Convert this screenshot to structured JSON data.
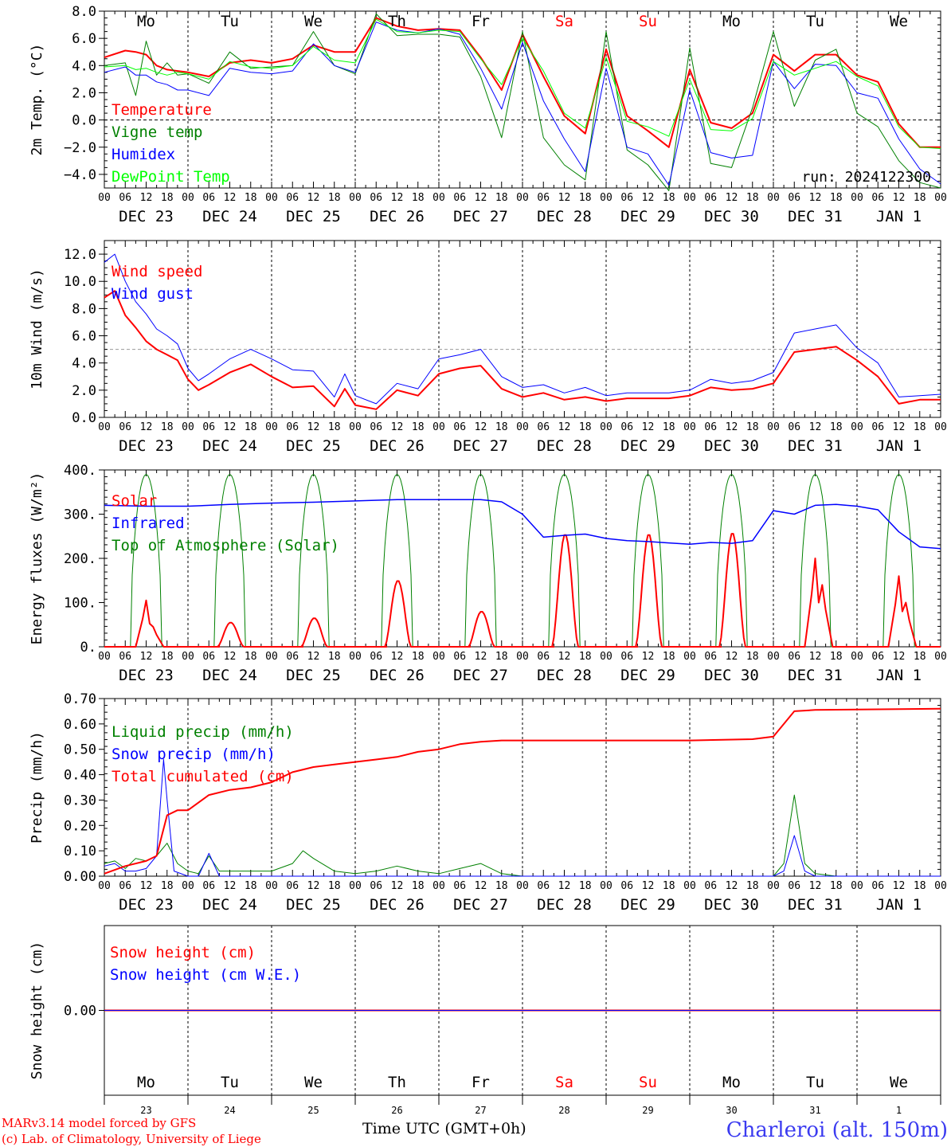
{
  "footer": {
    "model": "MARv3.14 model forced by GFS",
    "lab": "(c) Lab. of Climatology, University of Liege",
    "xaxis_label": "Time UTC (GMT+0h)",
    "station": "Charleroi (alt. 150m)"
  },
  "days": {
    "day_names": [
      "Mo",
      "Tu",
      "We",
      "Th",
      "Fr",
      "Sa",
      "Su",
      "Mo",
      "Tu",
      "We"
    ],
    "dates": [
      "DEC 23",
      "DEC 24",
      "DEC 25",
      "DEC 26",
      "DEC 27",
      "DEC 28",
      "DEC 29",
      "DEC 30",
      "DEC 31",
      "JAN  1"
    ],
    "day_numbers": [
      "23",
      "24",
      "25",
      "26",
      "27",
      "28",
      "29",
      "30",
      "31",
      "1"
    ],
    "hour_ticks": [
      "00",
      "06",
      "12",
      "18"
    ],
    "final_tick": "00",
    "weekend_color": "#ff0000",
    "weekday_color": "#000000"
  },
  "colors": {
    "red": "#ff0000",
    "green": "#008000",
    "blue": "#0000ff",
    "lightgreen": "#00ff00"
  },
  "chart_data": [
    {
      "type": "line",
      "ylabel": "2m Temp. (°C)",
      "ylim": [
        -5,
        8
      ],
      "yticks": [
        "8.0",
        "6.0",
        "4.0",
        "2.0",
        "0.0",
        "−2.0",
        "−4.0"
      ],
      "yticks_values": [
        8,
        6,
        4,
        2,
        0,
        -2,
        -4
      ],
      "reference_line": 0,
      "annotation": "run: 2024122300",
      "x_hours": [
        0,
        6,
        9,
        12,
        15,
        18,
        21,
        24,
        30,
        36,
        42,
        48,
        54,
        60,
        66,
        72,
        78,
        84,
        90,
        96,
        102,
        108,
        114,
        120,
        126,
        132,
        138,
        144,
        150,
        156,
        162,
        168,
        174,
        180,
        186,
        192,
        198,
        204,
        210,
        216,
        222,
        228,
        234,
        240
      ],
      "series": [
        {
          "name": "Temperature",
          "color": "#ff0000",
          "values": [
            4.6,
            5.1,
            5.0,
            4.8,
            4.0,
            3.7,
            3.6,
            3.5,
            3.2,
            4.2,
            4.4,
            4.2,
            4.5,
            5.5,
            5.0,
            5.0,
            7.5,
            6.9,
            6.6,
            6.7,
            6.6,
            4.6,
            2.2,
            6.3,
            3.2,
            0.3,
            -1.0,
            5.2,
            0.3,
            -0.8,
            -2.0,
            3.7,
            -0.2,
            -0.6,
            0.5,
            4.8,
            3.6,
            4.8,
            4.8,
            3.3,
            2.8,
            -0.3,
            -2.0,
            -2.0
          ]
        },
        {
          "name": "Vigne temp",
          "color": "#008000",
          "values": [
            4.0,
            4.2,
            1.8,
            5.8,
            3.3,
            4.2,
            3.3,
            3.4,
            2.7,
            5.0,
            3.8,
            3.9,
            4.0,
            6.5,
            4.0,
            3.4,
            7.8,
            6.2,
            6.3,
            6.3,
            6.1,
            3.2,
            -1.3,
            6.5,
            -1.3,
            -3.3,
            -4.4,
            6.5,
            -2.2,
            -3.3,
            -5.2,
            5.3,
            -3.2,
            -3.5,
            0.9,
            6.5,
            1.0,
            4.4,
            5.2,
            0.5,
            -0.5,
            -3.0,
            -4.6,
            -5.0
          ]
        },
        {
          "name": "Humidex",
          "color": "#0000ff",
          "values": [
            3.5,
            3.9,
            3.3,
            3.3,
            2.8,
            2.6,
            2.2,
            2.2,
            1.8,
            3.8,
            3.5,
            3.4,
            3.6,
            5.6,
            4.0,
            3.5,
            7.2,
            6.6,
            6.4,
            6.7,
            6.3,
            3.8,
            0.8,
            5.7,
            1.4,
            -1.4,
            -3.8,
            3.8,
            -2.0,
            -2.5,
            -4.8,
            2.2,
            -2.4,
            -2.8,
            -2.6,
            4.3,
            2.3,
            4.1,
            4.0,
            2.0,
            1.6,
            -1.4,
            -3.6,
            -4.7
          ]
        },
        {
          "name": "DewPoint Temp",
          "color": "#00ff00",
          "values": [
            3.9,
            4.0,
            3.7,
            3.8,
            3.5,
            3.3,
            3.5,
            3.4,
            3.0,
            4.3,
            3.9,
            3.8,
            4.0,
            5.4,
            4.4,
            4.2,
            7.4,
            6.5,
            6.4,
            6.6,
            6.5,
            4.5,
            2.6,
            6.0,
            3.6,
            0.5,
            -0.6,
            4.6,
            -0.1,
            -0.5,
            -1.2,
            3.0,
            -0.7,
            -0.8,
            0.1,
            4.3,
            3.3,
            3.8,
            4.3,
            3.2,
            2.5,
            -0.5,
            -2.0,
            -2.1
          ]
        }
      ],
      "legend_entries": [
        "Temperature",
        "Vigne temp",
        "Humidex",
        "DewPoint Temp"
      ],
      "legend_placement": "top-left",
      "grid": false
    },
    {
      "type": "line",
      "ylabel": "10m Wind (m/s)",
      "ylim": [
        0,
        13
      ],
      "yticks": [
        "12.0",
        "10.0",
        "8.0",
        "6.0",
        "4.0",
        "2.0",
        "0.0"
      ],
      "yticks_values": [
        12,
        10,
        8,
        6,
        4,
        2,
        0
      ],
      "reference_line": 5,
      "x_hours": [
        0,
        3,
        6,
        9,
        12,
        15,
        18,
        21,
        24,
        27,
        30,
        36,
        42,
        48,
        54,
        60,
        66,
        69,
        72,
        78,
        84,
        90,
        96,
        102,
        108,
        114,
        120,
        126,
        132,
        138,
        144,
        150,
        156,
        162,
        168,
        174,
        180,
        186,
        192,
        198,
        204,
        210,
        216,
        222,
        228,
        234,
        240
      ],
      "series": [
        {
          "name": "Wind speed",
          "color": "#ff0000",
          "values": [
            8.8,
            9.3,
            7.5,
            6.6,
            5.6,
            5.0,
            4.6,
            4.2,
            2.8,
            2.0,
            2.4,
            3.3,
            3.9,
            3.0,
            2.2,
            2.3,
            0.8,
            2.1,
            0.9,
            0.6,
            2.0,
            1.6,
            3.2,
            3.6,
            3.8,
            2.1,
            1.5,
            1.8,
            1.3,
            1.5,
            1.2,
            1.4,
            1.4,
            1.4,
            1.6,
            2.2,
            2.0,
            2.1,
            2.5,
            4.8,
            5.0,
            5.2,
            4.2,
            3.0,
            1.0,
            1.3,
            1.3
          ]
        },
        {
          "name": "Wind gust",
          "color": "#0000ff",
          "values": [
            11.4,
            12.0,
            10.0,
            8.5,
            7.6,
            6.5,
            6.0,
            5.4,
            3.6,
            2.7,
            3.2,
            4.3,
            5.0,
            4.3,
            3.5,
            3.4,
            1.5,
            3.2,
            1.6,
            1.0,
            2.5,
            2.1,
            4.3,
            4.6,
            5.0,
            3.0,
            2.2,
            2.4,
            1.8,
            2.2,
            1.6,
            1.8,
            1.8,
            1.8,
            2.0,
            2.8,
            2.5,
            2.7,
            3.3,
            6.2,
            6.5,
            6.8,
            5.1,
            4.0,
            1.5,
            1.6,
            1.7
          ]
        }
      ],
      "legend_entries": [
        "Wind speed",
        "Wind gust"
      ],
      "legend_placement": "top-left",
      "grid": false
    },
    {
      "type": "line",
      "ylabel": "Energy fluxes (W/m²)",
      "ylim": [
        0,
        400
      ],
      "yticks": [
        "400.",
        "300.",
        "200.",
        "100.",
        "0."
      ],
      "yticks_values": [
        400,
        300,
        200,
        100,
        0
      ],
      "toa_peak": 390,
      "solar_peaks": [
        {
          "day": 0,
          "peak": 105,
          "secondary": 45
        },
        {
          "day": 1,
          "peak": 55
        },
        {
          "day": 2,
          "peak": 65
        },
        {
          "day": 3,
          "peak": 150
        },
        {
          "day": 4,
          "peak": 80
        },
        {
          "day": 5,
          "peak": 255
        },
        {
          "day": 6,
          "peak": 255
        },
        {
          "day": 7,
          "peak": 258
        },
        {
          "day": 8,
          "peak": 200,
          "secondary": 140
        },
        {
          "day": 9,
          "peak": 160,
          "secondary": 100
        }
      ],
      "infrared": {
        "x_hours": [
          0,
          12,
          24,
          36,
          48,
          60,
          72,
          84,
          96,
          108,
          114,
          120,
          126,
          132,
          138,
          144,
          150,
          156,
          162,
          168,
          174,
          180,
          186,
          192,
          198,
          204,
          210,
          216,
          222,
          228,
          234,
          240
        ],
        "values": [
          320,
          318,
          318,
          322,
          325,
          327,
          330,
          333,
          333,
          333,
          328,
          300,
          248,
          252,
          255,
          245,
          240,
          238,
          235,
          232,
          236,
          234,
          240,
          308,
          300,
          320,
          322,
          318,
          310,
          260,
          226,
          222
        ]
      },
      "series_names": [
        "Solar",
        "Infrared",
        "Top of Atmosphere (Solar)"
      ],
      "series_colors": [
        "#ff0000",
        "#0000ff",
        "#008000"
      ],
      "legend_placement": "top-left",
      "grid": false
    },
    {
      "type": "line",
      "ylabel": "Precip (mm/h)",
      "ylim": [
        0,
        0.7
      ],
      "yticks": [
        "0.70",
        "0.60",
        "0.50",
        "0.40",
        "0.30",
        "0.20",
        "0.10",
        "0.00"
      ],
      "yticks_values": [
        0.7,
        0.6,
        0.5,
        0.4,
        0.3,
        0.2,
        0.1,
        0
      ],
      "series": [
        {
          "name": "Liquid precip (mm/h)",
          "color": "#008000",
          "x_hours": [
            0,
            3,
            6,
            9,
            12,
            15,
            18,
            21,
            24,
            27,
            30,
            33,
            36,
            42,
            48,
            54,
            57,
            60,
            66,
            72,
            78,
            84,
            90,
            96,
            102,
            108,
            114,
            120,
            192,
            195,
            198,
            201,
            204,
            210,
            240
          ],
          "values": [
            0.05,
            0.06,
            0.03,
            0.07,
            0.06,
            0.08,
            0.13,
            0.05,
            0.02,
            0.01,
            0.08,
            0.02,
            0.02,
            0.02,
            0.02,
            0.05,
            0.1,
            0.07,
            0.02,
            0.01,
            0.02,
            0.04,
            0.02,
            0.01,
            0.03,
            0.05,
            0.01,
            0.0,
            0.0,
            0.05,
            0.32,
            0.05,
            0.01,
            0.0,
            0.0
          ]
        },
        {
          "name": "Snow precip (mm/h)",
          "color": "#0000ff",
          "x_hours": [
            0,
            3,
            6,
            9,
            12,
            15,
            17,
            18,
            20,
            24,
            27,
            30,
            33,
            36,
            42,
            48,
            192,
            195,
            198,
            201,
            204,
            210,
            240
          ],
          "values": [
            0.04,
            0.05,
            0.02,
            0.02,
            0.03,
            0.08,
            0.46,
            0.3,
            0.02,
            0.0,
            0.0,
            0.09,
            0.0,
            0.0,
            0.0,
            0.0,
            0.0,
            0.02,
            0.16,
            0.02,
            0.0,
            0.0,
            0.0
          ]
        },
        {
          "name": "Total cumulated (cm)",
          "color": "#ff0000",
          "x_hours": [
            0,
            6,
            12,
            15,
            18,
            21,
            24,
            30,
            36,
            42,
            48,
            54,
            60,
            66,
            72,
            78,
            84,
            90,
            96,
            102,
            108,
            114,
            120,
            132,
            144,
            168,
            186,
            192,
            195,
            198,
            204,
            240
          ],
          "values": [
            0.01,
            0.04,
            0.06,
            0.08,
            0.24,
            0.26,
            0.26,
            0.32,
            0.34,
            0.35,
            0.37,
            0.41,
            0.43,
            0.44,
            0.45,
            0.46,
            0.47,
            0.49,
            0.5,
            0.52,
            0.53,
            0.535,
            0.535,
            0.535,
            0.535,
            0.535,
            0.54,
            0.55,
            0.6,
            0.65,
            0.655,
            0.66
          ]
        }
      ],
      "legend_entries": [
        "Liquid precip (mm/h)",
        "Snow precip (mm/h)",
        "Total cumulated (cm)"
      ],
      "legend_placement": "top-left",
      "grid": false
    },
    {
      "type": "line",
      "ylabel": "Snow height (cm)",
      "yticks": [
        "0.00"
      ],
      "yticks_values": [
        0
      ],
      "ylim": [
        -1,
        1
      ],
      "series": [
        {
          "name": "Snow height (cm)",
          "color": "#ff0000",
          "x_hours": [
            0,
            240
          ],
          "values": [
            0,
            0
          ]
        },
        {
          "name": "Snow height (cm W.E.)",
          "color": "#0000ff",
          "x_hours": [
            0,
            240
          ],
          "values": [
            0,
            0
          ]
        }
      ],
      "legend_entries": [
        "Snow height (cm)",
        "Snow height (cm W.E.)"
      ],
      "legend_placement": "top-left",
      "grid": false
    }
  ]
}
